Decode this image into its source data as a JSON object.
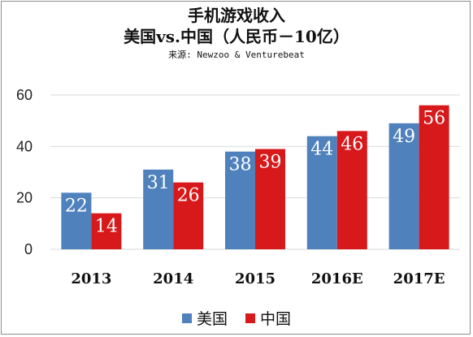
{
  "title_line1": "手机游戏收入",
  "title_line2": "美国vs.中国（人民币－10亿）",
  "source": "来源: Newzoo & Venturebeat",
  "colors": {
    "series_us": "#4f81bd",
    "series_cn": "#d7191c"
  },
  "chart_data": {
    "type": "bar",
    "categories": [
      "2013",
      "2014",
      "2015",
      "2016E",
      "2017E"
    ],
    "series": [
      {
        "name": "美国",
        "values": [
          22,
          31,
          38,
          44,
          49
        ]
      },
      {
        "name": "中国",
        "values": [
          14,
          26,
          39,
          46,
          56
        ]
      }
    ],
    "ylim": [
      0,
      60
    ],
    "yticks": [
      0,
      20,
      40,
      60
    ],
    "grid": true,
    "legend": "bottom"
  }
}
